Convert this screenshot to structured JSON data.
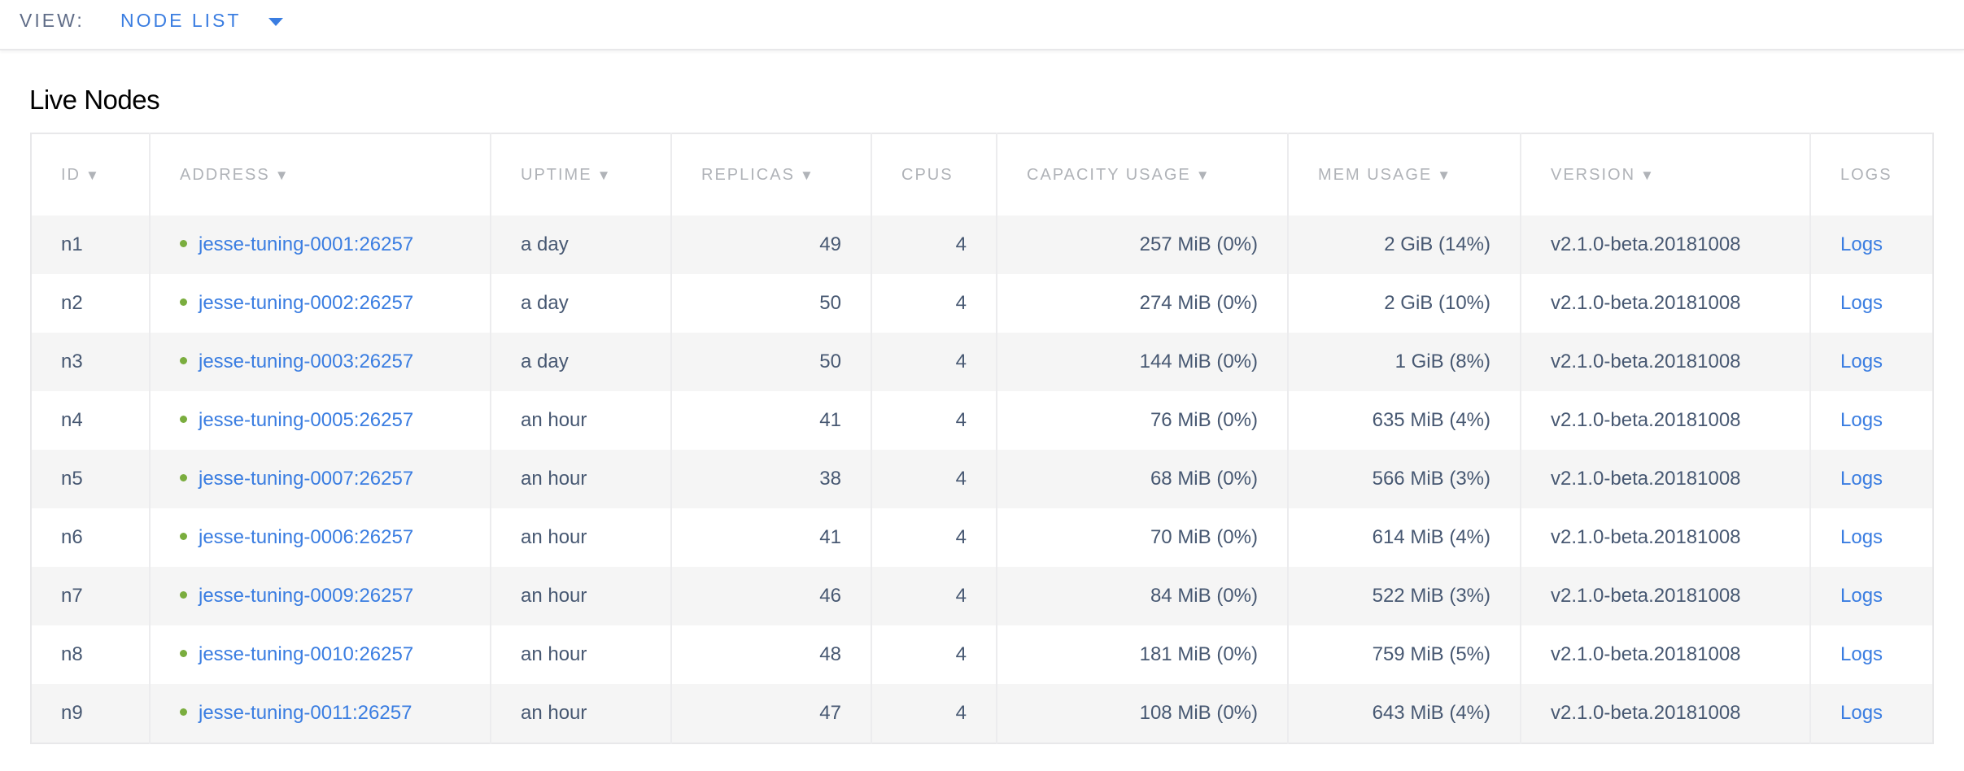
{
  "header": {
    "view_label": "VIEW:",
    "view_value": "NODE LIST"
  },
  "page_title": "Live Nodes",
  "colors": {
    "link": "#3a7de1",
    "status_live": "#7aad3e",
    "stripe": "#f5f5f5"
  },
  "table": {
    "columns": [
      {
        "label": "ID",
        "sortable": true
      },
      {
        "label": "ADDRESS",
        "sortable": true
      },
      {
        "label": "UPTIME",
        "sortable": true
      },
      {
        "label": "REPLICAS",
        "sortable": true
      },
      {
        "label": "CPUS",
        "sortable": false
      },
      {
        "label": "CAPACITY USAGE",
        "sortable": true
      },
      {
        "label": "MEM USAGE",
        "sortable": true
      },
      {
        "label": "VERSION",
        "sortable": true
      },
      {
        "label": "LOGS",
        "sortable": false
      }
    ],
    "sort_icon": "▼",
    "rows": [
      {
        "id": "n1",
        "address": "jesse-tuning-0001:26257",
        "uptime": "a day",
        "replicas": "49",
        "cpus": "4",
        "capacity": "257 MiB (0%)",
        "mem": "2 GiB (14%)",
        "version": "v2.1.0-beta.20181008",
        "logs": "Logs"
      },
      {
        "id": "n2",
        "address": "jesse-tuning-0002:26257",
        "uptime": "a day",
        "replicas": "50",
        "cpus": "4",
        "capacity": "274 MiB (0%)",
        "mem": "2 GiB (10%)",
        "version": "v2.1.0-beta.20181008",
        "logs": "Logs"
      },
      {
        "id": "n3",
        "address": "jesse-tuning-0003:26257",
        "uptime": "a day",
        "replicas": "50",
        "cpus": "4",
        "capacity": "144 MiB (0%)",
        "mem": "1 GiB (8%)",
        "version": "v2.1.0-beta.20181008",
        "logs": "Logs"
      },
      {
        "id": "n4",
        "address": "jesse-tuning-0005:26257",
        "uptime": "an hour",
        "replicas": "41",
        "cpus": "4",
        "capacity": "76 MiB (0%)",
        "mem": "635 MiB (4%)",
        "version": "v2.1.0-beta.20181008",
        "logs": "Logs"
      },
      {
        "id": "n5",
        "address": "jesse-tuning-0007:26257",
        "uptime": "an hour",
        "replicas": "38",
        "cpus": "4",
        "capacity": "68 MiB (0%)",
        "mem": "566 MiB (3%)",
        "version": "v2.1.0-beta.20181008",
        "logs": "Logs"
      },
      {
        "id": "n6",
        "address": "jesse-tuning-0006:26257",
        "uptime": "an hour",
        "replicas": "41",
        "cpus": "4",
        "capacity": "70 MiB (0%)",
        "mem": "614 MiB (4%)",
        "version": "v2.1.0-beta.20181008",
        "logs": "Logs"
      },
      {
        "id": "n7",
        "address": "jesse-tuning-0009:26257",
        "uptime": "an hour",
        "replicas": "46",
        "cpus": "4",
        "capacity": "84 MiB (0%)",
        "mem": "522 MiB (3%)",
        "version": "v2.1.0-beta.20181008",
        "logs": "Logs"
      },
      {
        "id": "n8",
        "address": "jesse-tuning-0010:26257",
        "uptime": "an hour",
        "replicas": "48",
        "cpus": "4",
        "capacity": "181 MiB (0%)",
        "mem": "759 MiB (5%)",
        "version": "v2.1.0-beta.20181008",
        "logs": "Logs"
      },
      {
        "id": "n9",
        "address": "jesse-tuning-0011:26257",
        "uptime": "an hour",
        "replicas": "47",
        "cpus": "4",
        "capacity": "108 MiB (0%)",
        "mem": "643 MiB (4%)",
        "version": "v2.1.0-beta.20181008",
        "logs": "Logs"
      }
    ]
  }
}
